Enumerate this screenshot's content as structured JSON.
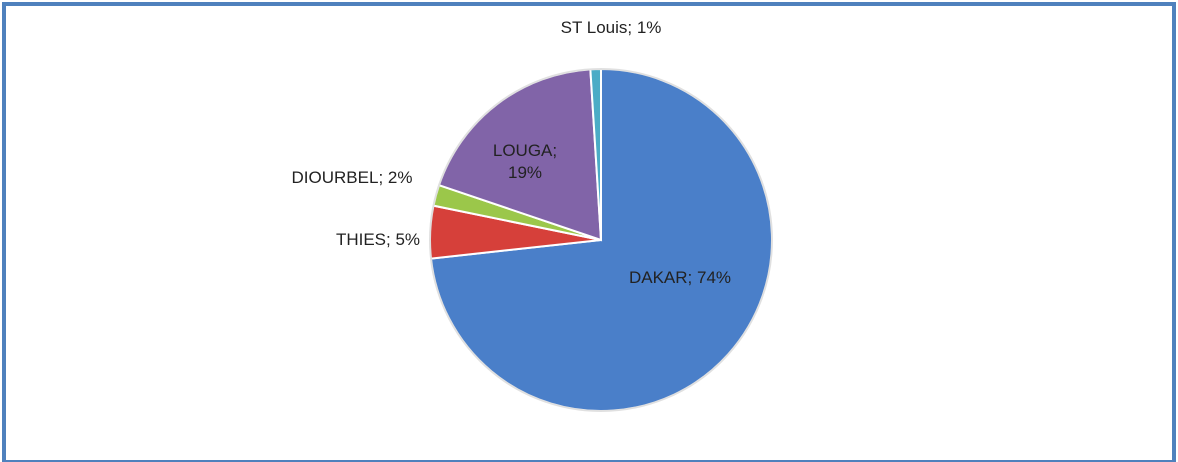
{
  "chart_data": {
    "type": "pie",
    "categories": [
      "DAKAR",
      "THIES",
      "DIOURBEL",
      "LOUGA",
      "ST Louis"
    ],
    "values": [
      74,
      5,
      2,
      19,
      1
    ],
    "value_labels": [
      "DAKAR; 74%",
      "THIES; 5%",
      "DIOURBEL; 2%",
      "LOUGA; 19%",
      "ST Louis; 1%"
    ],
    "colors": [
      "#4a7fc9",
      "#d6403a",
      "#9bc74a",
      "#8164a8",
      "#4bacc6"
    ]
  }
}
